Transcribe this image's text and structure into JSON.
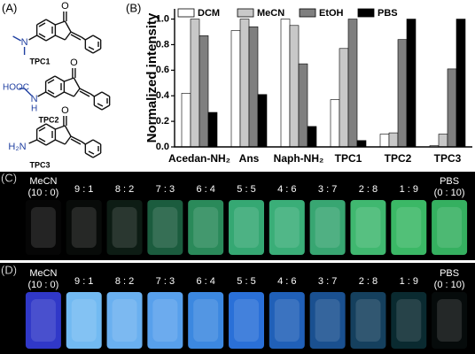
{
  "panel_a": {
    "label": "(A)",
    "compounds": [
      {
        "name": "TPC1",
        "carbonyl": "O",
        "amine": "N"
      },
      {
        "name": "TPC2",
        "carbonyl": "O",
        "acid": "HOOC",
        "amine": "N",
        "hydrogen": "H"
      },
      {
        "name": "TPC3",
        "carbonyl": "O",
        "amine": "H₂N"
      }
    ]
  },
  "chart_data": {
    "type": "bar",
    "panel_label": "(B)",
    "y_label": "Normalized intensity",
    "categories": [
      "Acedan-NH₂",
      "Ans",
      "Naph-NH₂",
      "TPC1",
      "TPC2",
      "TPC3"
    ],
    "series": [
      {
        "name": "DCM",
        "color": "#ffffff",
        "values": [
          0.42,
          0.91,
          1.0,
          0.37,
          0.1,
          0.01
        ]
      },
      {
        "name": "MeCN",
        "color": "#c8c8c8",
        "values": [
          1.0,
          1.0,
          0.95,
          0.77,
          0.11,
          0.1
        ]
      },
      {
        "name": "EtOH",
        "color": "#7f7f7f",
        "values": [
          0.87,
          0.94,
          0.65,
          1.0,
          0.84,
          0.61
        ]
      },
      {
        "name": "PBS",
        "color": "#000000",
        "values": [
          0.27,
          0.41,
          0.16,
          0.05,
          1.0,
          1.0
        ]
      }
    ],
    "ylim": [
      0,
      1.08
    ],
    "yticks": [
      {
        "value": 0,
        "label": "0.0"
      },
      0.2,
      0.4,
      0.6,
      0.8,
      {
        "value": 1,
        "label": "1.0"
      }
    ]
  },
  "panel_c": {
    "label": "(C)",
    "solvent_left": "MeCN",
    "solvent_right": "PBS",
    "ratios": [
      "(10 : 0)",
      "9 : 1",
      "8 : 2",
      "7 : 3",
      "6 : 4",
      "5 : 5",
      "4 : 6",
      "3 : 7",
      "2 : 8",
      "1 : 9",
      "(0 : 10)"
    ],
    "vial_colors": [
      "#060606",
      "#080b09",
      "#0d1c14",
      "#1b5c3e",
      "#2a8a5a",
      "#35a873",
      "#3aae78",
      "#38a672",
      "#40b870",
      "#3bb866",
      "#35b060"
    ]
  },
  "panel_d": {
    "label": "(D)",
    "solvent_left": "MeCN",
    "solvent_right": "PBS",
    "ratios": [
      "(10 : 0)",
      "9 : 1",
      "8 : 2",
      "7 : 3",
      "6 : 4",
      "5 : 5",
      "4 : 6",
      "3 : 7",
      "2 : 8",
      "1 : 9",
      "(0 : 10)"
    ],
    "vial_colors": [
      "#3038c8",
      "#72baf2",
      "#6ab0f0",
      "#58a0ec",
      "#3c88e0",
      "#2a70d8",
      "#2060b8",
      "#1a5090",
      "#15405e",
      "#0a2a30",
      "#060b0b"
    ]
  }
}
